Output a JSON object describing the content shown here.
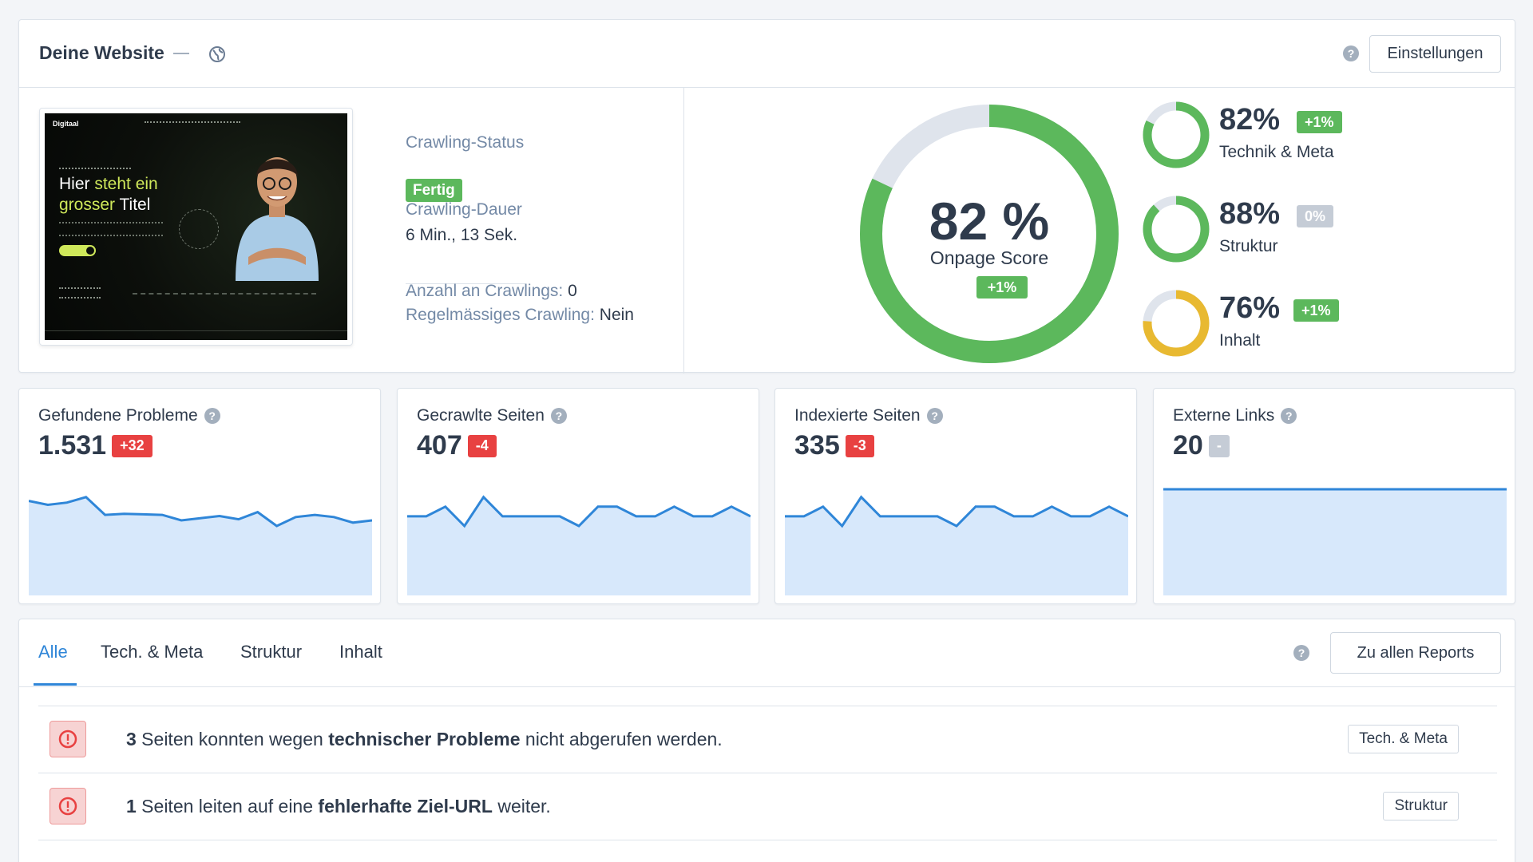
{
  "header": {
    "title": "Deine Website",
    "settings_label": "Einstellungen"
  },
  "crawl": {
    "status_label": "Crawling-Status",
    "status_value": "Fertig",
    "duration_label": "Crawling-Dauer",
    "duration_value": "6 Min., 13 Sek.",
    "count_label": "Anzahl an Crawlings:",
    "count_value": "0",
    "regular_label": "Regelmässiges Crawling:",
    "regular_value": "Nein"
  },
  "preview": {
    "logo": "Digitaal",
    "headline_1a": "Hier ",
    "headline_1b": "steht ein",
    "headline_2a": "grosser ",
    "headline_2b": "Titel"
  },
  "score": {
    "percent": "82 %",
    "fraction": 0.82,
    "label": "Onpage Score",
    "delta": "+1%",
    "sub": [
      {
        "percent": "82%",
        "fraction": 0.82,
        "delta": "+1%",
        "label": "Technik & Meta",
        "color": "#5cb85c",
        "delta_style": "green"
      },
      {
        "percent": "88%",
        "fraction": 0.88,
        "delta": "0%",
        "label": "Struktur",
        "color": "#5cb85c",
        "delta_style": "gray"
      },
      {
        "percent": "76%",
        "fraction": 0.76,
        "delta": "+1%",
        "label": "Inhalt",
        "color": "#e8b931",
        "delta_style": "green"
      }
    ]
  },
  "metrics": [
    {
      "label": "Gefundene Probleme",
      "value": "1.531",
      "delta": "+32",
      "delta_style": "red",
      "series": [
        1555,
        1548,
        1552,
        1562,
        1530,
        1532,
        1531,
        1530,
        1520,
        1524,
        1528,
        1522,
        1535,
        1510,
        1526,
        1530,
        1526,
        1516,
        1520
      ]
    },
    {
      "label": "Gecrawlte Seiten",
      "value": "407",
      "delta": "-4",
      "delta_style": "red",
      "series": [
        410,
        410,
        411,
        409,
        412,
        410,
        410,
        410,
        410,
        409,
        411,
        411,
        410,
        410,
        411,
        410,
        410,
        411,
        410
      ]
    },
    {
      "label": "Indexierte Seiten",
      "value": "335",
      "delta": "-3",
      "delta_style": "red",
      "series": [
        338,
        338,
        339,
        337,
        340,
        338,
        338,
        338,
        338,
        337,
        339,
        339,
        338,
        338,
        339,
        338,
        338,
        339,
        338
      ]
    },
    {
      "label": "Externe Links",
      "value": "20",
      "delta": "-",
      "delta_style": "gray",
      "series": [
        20,
        20,
        20,
        20,
        20,
        20,
        20,
        20,
        20,
        20,
        20,
        20,
        20,
        20,
        20,
        20,
        20,
        20,
        20
      ]
    }
  ],
  "tabs": [
    {
      "label": "Alle",
      "active": true
    },
    {
      "label": "Tech. & Meta",
      "active": false
    },
    {
      "label": "Struktur",
      "active": false
    },
    {
      "label": "Inhalt",
      "active": false
    }
  ],
  "reports_label": "Zu allen Reports",
  "issues": [
    {
      "count": "3",
      "text_1": " Seiten konnten wegen ",
      "bold": "technischer Probleme",
      "text_2": " nicht abgerufen werden.",
      "category": "Tech. & Meta"
    },
    {
      "count": "1",
      "text_1": " Seiten leiten auf eine ",
      "bold": "fehlerhafte Ziel-URL",
      "text_2": " weiter.",
      "category": "Struktur"
    }
  ],
  "colors": {
    "accent": "#2f86d8",
    "good": "#5cb85c",
    "warn": "#e8b931",
    "bad": "#e84141",
    "track": "#dfe4ec",
    "chart_fill": "#d7e8fb"
  }
}
